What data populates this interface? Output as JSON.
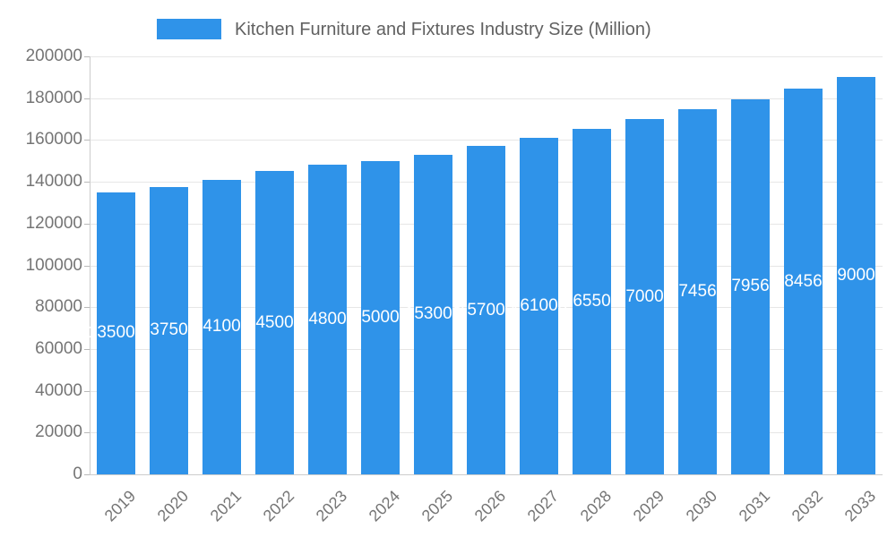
{
  "chart_data": {
    "type": "bar",
    "title": "Kitchen Furniture and Fixtures Industry Size (Million)",
    "legend_position": "top",
    "categories": [
      "2019",
      "2020",
      "2021",
      "2022",
      "2023",
      "2024",
      "2025",
      "2026",
      "2027",
      "2028",
      "2029",
      "2030",
      "2031",
      "2032",
      "2033"
    ],
    "values": [
      135000,
      137500,
      141000,
      145000,
      148000,
      150000,
      153000,
      157000,
      161000,
      165500,
      170000,
      174560,
      179560,
      184560,
      190000
    ],
    "xlabel": "",
    "ylabel": "",
    "ylim": [
      0,
      200000
    ],
    "yticks": [
      0,
      20000,
      40000,
      60000,
      80000,
      100000,
      120000,
      140000,
      160000,
      180000,
      200000
    ],
    "grid": true,
    "bar_color": "#2f93e9",
    "value_label_color": "#ffffff"
  }
}
